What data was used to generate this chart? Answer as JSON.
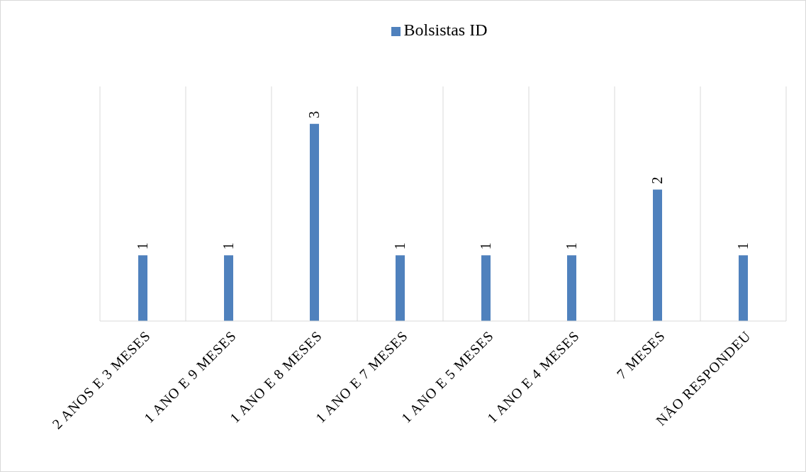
{
  "chart_data": {
    "type": "bar",
    "categories": [
      "2 ANOS E 3 MESES",
      "1 ANO E 9 MESES",
      "1 ANO E 8 MESES",
      "1 ANO E 7 MESES",
      "1 ANO E 5 MESES",
      "1 ANO E 4 MESES",
      "7 MESES",
      "NÃO RESPONDEU"
    ],
    "series": [
      {
        "name": "Bolsistas ID",
        "color": "#4f81bd",
        "values": [
          1,
          1,
          3,
          1,
          1,
          1,
          2,
          1
        ]
      }
    ],
    "data_labels": true,
    "grid": "x",
    "legend": "top",
    "tick_labels": "x"
  }
}
